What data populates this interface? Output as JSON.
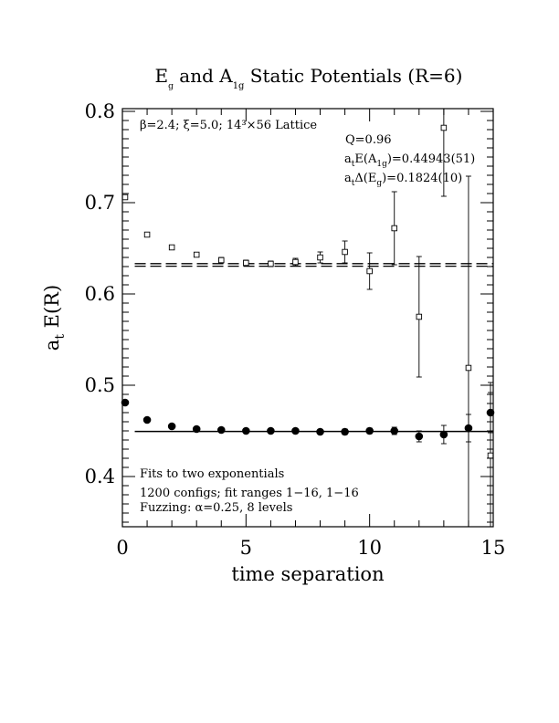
{
  "chart_data": {
    "type": "scatter",
    "title": {
      "main": "E",
      "sub1": "g",
      "mid": " and A",
      "sub2": "1g",
      "rest": " Static Potentials (R=6)"
    },
    "xlabel": "time separation",
    "ylabel": {
      "main": "a",
      "sub": "t",
      "rest": " E(R)"
    },
    "xlim": [
      0,
      15
    ],
    "ylim": [
      0.345,
      0.803
    ],
    "xticks": [
      0,
      5,
      10,
      15
    ],
    "xtick_labels": [
      "0",
      "5",
      "10",
      "15"
    ],
    "yticks": [
      0.4,
      0.5,
      0.6,
      0.7,
      0.8
    ],
    "ytick_labels": [
      "0.4",
      "0.5",
      "0.6",
      "0.7",
      "0.8"
    ],
    "grid": false,
    "annotations": {
      "params": "β=2.4; ξ=5.0; 14³×56 Lattice",
      "q": "Q=0.96",
      "eA": {
        "pre": "a",
        "sub1": "t",
        "mid": "E(A",
        "sub2": "1g",
        "post": ")=0.44943(51)"
      },
      "dE": {
        "pre": "a",
        "sub1": "t",
        "mid": "Δ(E",
        "sub2": "g",
        "post": ")=0.1824(10)"
      },
      "fit1": "Fits to two exponentials",
      "fit2": "1200 configs; fit ranges 1−16, 1−16",
      "fit3": "Fuzzing: α=0.25, 8 levels"
    },
    "series": [
      {
        "name": "Eg",
        "marker": "open-square",
        "x": [
          0,
          1,
          2,
          3,
          4,
          5,
          6,
          7,
          8,
          9,
          10,
          11,
          12,
          13,
          14,
          15
        ],
        "y": [
          0.706,
          0.665,
          0.651,
          0.643,
          0.637,
          0.634,
          0.633,
          0.635,
          0.64,
          0.646,
          0.625,
          0.672,
          0.575,
          0.782,
          0.519,
          0.423
        ],
        "err": [
          0.002,
          0.002,
          0.002,
          0.002,
          0.003,
          0.003,
          0.003,
          0.004,
          0.006,
          0.012,
          0.02,
          0.04,
          0.066,
          0.075,
          0.21,
          0.08
        ]
      },
      {
        "name": "A1g",
        "marker": "filled-circle",
        "x": [
          0,
          1,
          2,
          3,
          4,
          5,
          6,
          7,
          8,
          9,
          10,
          11,
          12,
          13,
          14,
          15
        ],
        "y": [
          0.481,
          0.462,
          0.455,
          0.452,
          0.451,
          0.45,
          0.45,
          0.45,
          0.449,
          0.449,
          0.45,
          0.45,
          0.444,
          0.446,
          0.453,
          0.47
        ],
        "err": [
          0.001,
          0.001,
          0.001,
          0.001,
          0.002,
          0.002,
          0.002,
          0.002,
          0.002,
          0.003,
          0.003,
          0.004,
          0.006,
          0.01,
          0.015,
          0.022
        ]
      }
    ],
    "fit_lines": [
      {
        "name": "Eg fit",
        "y": 0.6318,
        "style": "dashed-band"
      },
      {
        "name": "A1g fit",
        "y": 0.4494,
        "style": "solid"
      }
    ]
  }
}
